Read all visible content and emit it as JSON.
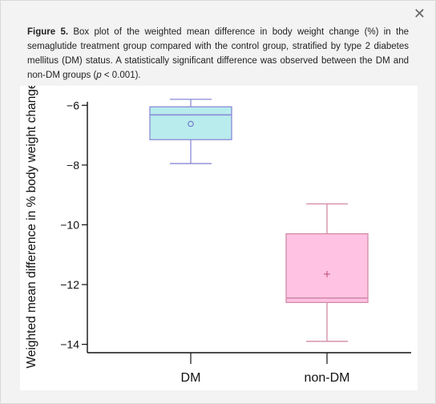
{
  "close_glyph": "✕",
  "caption": {
    "label": "Figure 5.",
    "text_before_p": " Box plot of the weighted mean difference in body weight change (%) in the semaglutide treatment group compared with the control group, stratified by type 2 diabetes mellitus (DM) status. A statistically significant difference was observed between the DM and non-DM groups (",
    "p_symbol": "p",
    "text_after_p": " < 0.001)."
  },
  "chart_data": {
    "type": "box",
    "ylabel": "Weighted mean difference in % body weight change",
    "xlabel": "",
    "ylim": [
      -14.2,
      -5.4
    ],
    "yticks": [
      -6,
      -8,
      -10,
      -12,
      -14
    ],
    "ytick_labels": [
      "−6",
      "−8",
      "−10",
      "−12",
      "−14"
    ],
    "categories": [
      "DM",
      "non-DM"
    ],
    "boxes": [
      {
        "category": "DM",
        "whisker_low": -7.95,
        "q1": -7.15,
        "median": -6.32,
        "q3": -6.05,
        "whisker_high": -5.8,
        "mean": -6.62,
        "mean_marker": "circle",
        "fill": "#b9ecec",
        "stroke": "#8a8ad8"
      },
      {
        "category": "non-DM",
        "whisker_low": -13.9,
        "q1": -12.6,
        "median": -12.45,
        "q3": -10.3,
        "whisker_high": -9.3,
        "mean": -11.65,
        "mean_marker": "plus",
        "fill": "#ffc2e2",
        "stroke": "#d48aa8"
      }
    ],
    "grid": false
  }
}
